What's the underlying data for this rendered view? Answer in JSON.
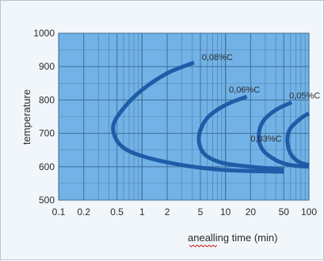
{
  "chart_data": {
    "type": "line",
    "xscale": "log",
    "xlim": [
      0.1,
      100
    ],
    "ylim": [
      500,
      1000
    ],
    "xticks": [
      0.1,
      0.2,
      0.5,
      1,
      2,
      5,
      10,
      20,
      50,
      100
    ],
    "xtick_labels": [
      "0.1",
      "0.2",
      "0.5",
      "1",
      "2",
      "5",
      "10",
      "20",
      "50",
      "100"
    ],
    "yticks": [
      500,
      600,
      700,
      800,
      900,
      1000
    ],
    "ytick_labels": [
      "500",
      "600",
      "700",
      "800",
      "900",
      "1000"
    ],
    "xlabel": "anealling time (min)",
    "ylabel": "temperature",
    "grid": true,
    "colors": {
      "plot_background": "#72b2e6",
      "grid_line": "#3f6f9a",
      "curve": "#1f5ca8",
      "frame_background": "#f1f6fb"
    },
    "series": [
      {
        "name": "0,08%C",
        "points": [
          [
            4.2,
            912
          ],
          [
            2.0,
            880
          ],
          [
            1.0,
            830
          ],
          [
            0.6,
            775
          ],
          [
            0.45,
            720
          ],
          [
            0.55,
            665
          ],
          [
            1.0,
            632
          ],
          [
            3.0,
            605
          ],
          [
            10,
            590
          ],
          [
            50,
            585
          ]
        ]
      },
      {
        "name": "0,06%C",
        "points": [
          [
            18,
            810
          ],
          [
            10,
            785
          ],
          [
            6,
            745
          ],
          [
            4.8,
            690
          ],
          [
            5.5,
            640
          ],
          [
            9,
            612
          ],
          [
            20,
            600
          ],
          [
            50,
            592
          ]
        ]
      },
      {
        "name": "0,05%C",
        "points": [
          [
            62,
            793
          ],
          [
            40,
            770
          ],
          [
            28,
            735
          ],
          [
            25,
            690
          ],
          [
            28,
            650
          ],
          [
            40,
            620
          ],
          [
            60,
            605
          ],
          [
            100,
            600
          ]
        ]
      },
      {
        "name": "0,03%C",
        "points": [
          [
            100,
            760
          ],
          [
            80,
            745
          ],
          [
            60,
            715
          ],
          [
            55,
            680
          ],
          [
            60,
            640
          ],
          [
            75,
            615
          ],
          [
            100,
            605
          ]
        ]
      }
    ],
    "annotations": [
      {
        "text": "0,08%C",
        "x": 5.2,
        "y": 920,
        "series": "0,08%C"
      },
      {
        "text": "0,06%C",
        "x": 11,
        "y": 822,
        "series": "0,06%C"
      },
      {
        "text": "0,05%C",
        "x": 58,
        "y": 805,
        "series": "0,05%C"
      },
      {
        "text": "0,03%C",
        "x": 20,
        "y": 675,
        "series": "0,03%C"
      }
    ]
  }
}
